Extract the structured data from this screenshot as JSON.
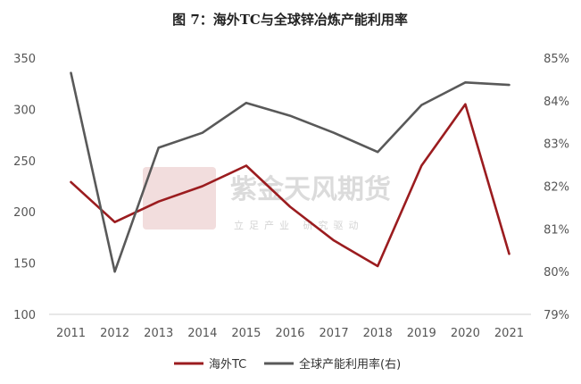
{
  "chart_data": {
    "type": "line",
    "title": "图 7：海外TC与全球锌冶炼产能利用率",
    "categories": [
      "2011",
      "2012",
      "2013",
      "2014",
      "2015",
      "2016",
      "2017",
      "2018",
      "2019",
      "2020",
      "2021"
    ],
    "series": [
      {
        "name": "海外TC",
        "axis": "left",
        "color": "#9b1c1f",
        "values": [
          229,
          190,
          210,
          225,
          245,
          205,
          172,
          147,
          245,
          305,
          159
        ]
      },
      {
        "name": "全球产能利用率(右)",
        "axis": "right",
        "color": "#595959",
        "values": [
          84.65,
          80.0,
          82.9,
          83.25,
          83.95,
          83.65,
          83.25,
          82.8,
          83.9,
          84.43,
          84.37
        ]
      }
    ],
    "y_left": {
      "lim": [
        100,
        350
      ],
      "ticks": [
        "100",
        "150",
        "200",
        "250",
        "300",
        "350"
      ]
    },
    "y_right": {
      "lim": [
        79,
        85
      ],
      "ticks": [
        "79%",
        "80%",
        "81%",
        "82%",
        "83%",
        "84%",
        "85%"
      ]
    },
    "grid": false,
    "legend_position": "bottom"
  },
  "watermark": {
    "logo_glyphs": "紫金天风",
    "text": "紫金天风期货",
    "subtext": "立足产业 研究驱动"
  }
}
